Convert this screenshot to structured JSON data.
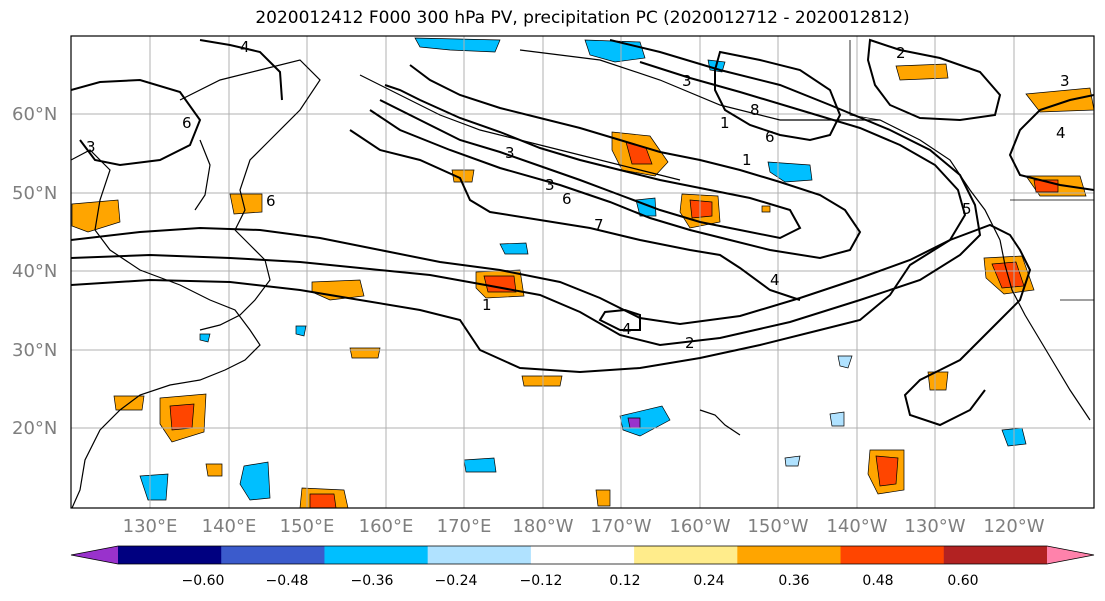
{
  "title": "2020012412 F000 300 hPa PV, precipitation PC (2020012712 - 2020012812)",
  "lat_labels": [
    "60°N",
    "50°N",
    "40°N",
    "30°N",
    "20°N"
  ],
  "lon_labels": [
    "130°E",
    "140°E",
    "150°E",
    "160°E",
    "170°E",
    "180°W",
    "170°W",
    "160°W",
    "150°W",
    "140°W",
    "130°W",
    "120°W"
  ],
  "contour_labels": [
    "4",
    "6",
    "3",
    "6",
    "3",
    "3",
    "6",
    "7",
    "1",
    "4",
    "4",
    "2",
    "1",
    "3",
    "8",
    "6",
    "1",
    "2",
    "3",
    "4",
    "5"
  ],
  "colorbar": {
    "colors": [
      "#9932cc",
      "#000080",
      "#3b5bcc",
      "#00bfff",
      "#b0e2ff",
      "#ffffff",
      "#ffec8b",
      "#ffa500",
      "#ff4500",
      "#b22222",
      "#ff82ab"
    ],
    "ticks": [
      "−0.60",
      "−0.48",
      "−0.36",
      "−0.24",
      "−0.12",
      "0.12",
      "0.24",
      "0.36",
      "0.48",
      "0.60"
    ]
  }
}
